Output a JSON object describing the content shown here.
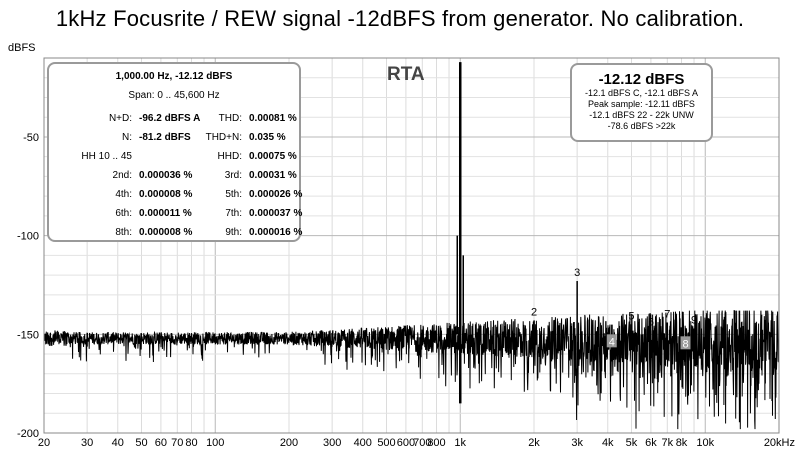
{
  "title": "1kHz Focusrite / REW signal -12dBFS from generator. No calibration.",
  "rta_label": "RTA",
  "stats": {
    "header": "1,000.00 Hz, -12.12 dBFS",
    "span": "Span: 0 .. 45,600 Hz",
    "rows": [
      {
        "l1": "N+D:",
        "v1": "-96.2 dBFS A",
        "l2": "THD:",
        "v2": "0.00081 %"
      },
      {
        "l1": "N:",
        "v1": "-81.2 dBFS",
        "l2": "THD+N:",
        "v2": "0.035 %"
      },
      {
        "l1": "HH 10 .. 45",
        "v1": "",
        "l2": "HHD:",
        "v2": "0.00075 %"
      },
      {
        "l1": "2nd:",
        "v1": "0.000036 %",
        "l2": "3rd:",
        "v2": "0.00031 %"
      },
      {
        "l1": "4th:",
        "v1": "0.000008 %",
        "l2": "5th:",
        "v2": "0.000026 %"
      },
      {
        "l1": "6th:",
        "v1": "0.000011 %",
        "l2": "7th:",
        "v2": "0.000037 %"
      },
      {
        "l1": "8th:",
        "v1": "0.000008 %",
        "l2": "9th:",
        "v2": "0.000016 %"
      }
    ]
  },
  "level": {
    "main": "-12.12 dBFS",
    "lines": [
      "-12.1 dBFS C, -12.1 dBFS A",
      "Peak sample: -12.11 dBFS",
      "-12.1 dBFS 22 - 22k UNW",
      "-78.6 dBFS >22k"
    ]
  },
  "chart_data": {
    "type": "line",
    "xscale": "log",
    "xlim": [
      20,
      20000
    ],
    "ylim": [
      -200,
      -10
    ],
    "ylabel": "dBFS",
    "yticks": [
      -50,
      -100,
      -150,
      -200
    ],
    "ytick_labels": [
      "-50",
      "-100",
      "-150",
      "-200"
    ],
    "xticks": [
      20,
      30,
      40,
      50,
      60,
      70,
      80,
      100,
      200,
      300,
      400,
      500,
      600,
      700,
      800,
      1000,
      2000,
      3000,
      4000,
      5000,
      6000,
      7000,
      8000,
      10000,
      20000
    ],
    "xtick_labels": [
      "20",
      "30",
      "40",
      "50",
      "60",
      "70",
      "80",
      "100",
      "200",
      "300",
      "400",
      "500",
      "600",
      "700",
      "800",
      "1k",
      "2k",
      "3k",
      "4k",
      "5k",
      "6k",
      "7k",
      "8k",
      "10k",
      "20kHz"
    ],
    "noise_floor_approx": -150,
    "fundamental": {
      "x": 1000,
      "y": -12.12
    },
    "harmonics": [
      {
        "label": "2",
        "x": 2000,
        "y": -143
      },
      {
        "label": "3",
        "x": 3000,
        "y": -123
      },
      {
        "label": "4",
        "x": 4000,
        "y": -149
      },
      {
        "label": "5",
        "x": 5000,
        "y": -145
      },
      {
        "label": "6",
        "x": 6000,
        "y": -148
      },
      {
        "label": "7",
        "x": 7000,
        "y": -144
      },
      {
        "label": "8",
        "x": 8000,
        "y": -150
      },
      {
        "label": "9",
        "x": 9000,
        "y": -147
      }
    ],
    "series_color": "#000000",
    "grid": true
  }
}
